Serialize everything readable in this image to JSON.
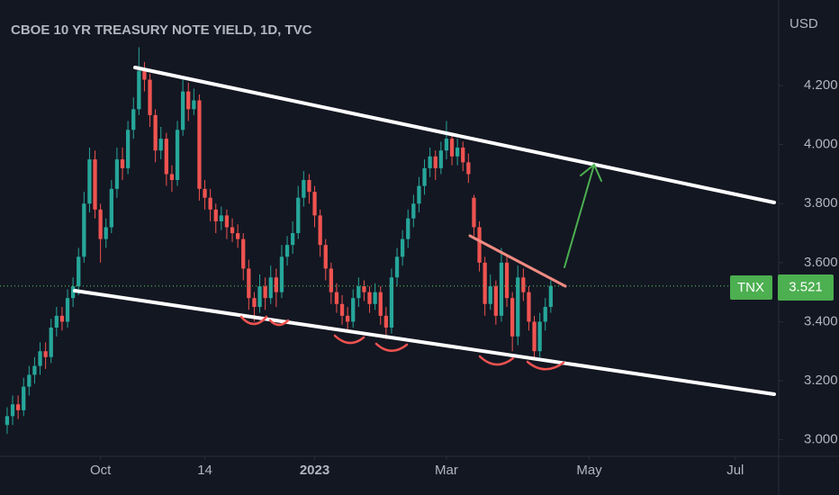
{
  "chart_data": {
    "type": "candlestick",
    "title": "CBOE 10 YR TREASURY NOTE YIELD, 1D, TVC",
    "currency": "USD",
    "symbol": "TNX",
    "last_price": 3.521,
    "up_color": "#26a69a",
    "down_color": "#ef5350",
    "grid": false,
    "ylim": [
      2.95,
      4.49
    ],
    "yticks": [
      {
        "value": 3.0,
        "label": "3.000"
      },
      {
        "value": 3.2,
        "label": "3.200"
      },
      {
        "value": 3.4,
        "label": "3.400"
      },
      {
        "value": 3.6,
        "label": "3.600"
      },
      {
        "value": 3.8,
        "label": "3.800"
      },
      {
        "value": 4.0,
        "label": "4.000"
      },
      {
        "value": 4.2,
        "label": "4.200"
      }
    ],
    "xlim": [
      -1.3,
      140.5
    ],
    "xticks": [
      {
        "value": 17,
        "label": "Oct"
      },
      {
        "value": 36,
        "label": "14"
      },
      {
        "value": 56,
        "label": "2023"
      },
      {
        "value": 80,
        "label": "Mar"
      },
      {
        "value": 106,
        "label": "May"
      },
      {
        "value": 132.6,
        "label": "Jul"
      }
    ],
    "ohlc": [
      [
        3.05,
        3.11,
        3.02,
        3.08
      ],
      [
        3.08,
        3.15,
        3.05,
        3.12
      ],
      [
        3.12,
        3.15,
        3.07,
        3.1
      ],
      [
        3.1,
        3.21,
        3.08,
        3.18
      ],
      [
        3.18,
        3.25,
        3.15,
        3.22
      ],
      [
        3.22,
        3.28,
        3.19,
        3.25
      ],
      [
        3.25,
        3.33,
        3.22,
        3.3
      ],
      [
        3.3,
        3.33,
        3.24,
        3.28
      ],
      [
        3.28,
        3.41,
        3.26,
        3.38
      ],
      [
        3.38,
        3.45,
        3.35,
        3.42
      ],
      [
        3.42,
        3.45,
        3.37,
        3.4
      ],
      [
        3.4,
        3.51,
        3.38,
        3.48
      ],
      [
        3.48,
        3.55,
        3.45,
        3.52
      ],
      [
        3.52,
        3.65,
        3.49,
        3.62
      ],
      [
        3.62,
        3.84,
        3.6,
        3.8
      ],
      [
        3.8,
        3.99,
        3.77,
        3.95
      ],
      [
        3.95,
        3.98,
        3.75,
        3.78
      ],
      [
        3.78,
        3.8,
        3.6,
        3.68
      ],
      [
        3.68,
        3.75,
        3.65,
        3.72
      ],
      [
        3.72,
        3.88,
        3.7,
        3.85
      ],
      [
        3.85,
        3.99,
        3.82,
        3.95
      ],
      [
        3.95,
        3.99,
        3.88,
        3.92
      ],
      [
        3.92,
        4.08,
        3.9,
        4.05
      ],
      [
        4.05,
        4.16,
        4.02,
        4.12
      ],
      [
        4.12,
        4.33,
        4.1,
        4.25
      ],
      [
        4.25,
        4.28,
        4.18,
        4.22
      ],
      [
        4.22,
        4.24,
        4.06,
        4.1
      ],
      [
        4.1,
        4.12,
        3.94,
        3.98
      ],
      [
        3.98,
        4.06,
        3.95,
        4.02
      ],
      [
        4.02,
        4.04,
        3.86,
        3.9
      ],
      [
        3.9,
        3.93,
        3.84,
        3.88
      ],
      [
        3.88,
        4.08,
        3.86,
        4.05
      ],
      [
        4.05,
        4.22,
        4.03,
        4.18
      ],
      [
        4.18,
        4.21,
        4.08,
        4.12
      ],
      [
        4.12,
        4.19,
        4.1,
        4.15
      ],
      [
        4.15,
        4.17,
        3.81,
        3.85
      ],
      [
        3.85,
        3.88,
        3.78,
        3.82
      ],
      [
        3.82,
        3.85,
        3.74,
        3.78
      ],
      [
        3.78,
        3.8,
        3.7,
        3.74
      ],
      [
        3.74,
        3.79,
        3.71,
        3.76
      ],
      [
        3.76,
        3.78,
        3.68,
        3.72
      ],
      [
        3.72,
        3.75,
        3.67,
        3.7
      ],
      [
        3.7,
        3.73,
        3.65,
        3.68
      ],
      [
        3.68,
        3.7,
        3.54,
        3.58
      ],
      [
        3.58,
        3.61,
        3.44,
        3.48
      ],
      [
        3.48,
        3.5,
        3.4,
        3.45
      ],
      [
        3.45,
        3.56,
        3.43,
        3.52
      ],
      [
        3.52,
        3.55,
        3.44,
        3.48
      ],
      [
        3.48,
        3.59,
        3.46,
        3.55
      ],
      [
        3.55,
        3.58,
        3.45,
        3.5
      ],
      [
        3.5,
        3.66,
        3.48,
        3.62
      ],
      [
        3.62,
        3.69,
        3.59,
        3.66
      ],
      [
        3.66,
        3.74,
        3.63,
        3.7
      ],
      [
        3.7,
        3.86,
        3.68,
        3.82
      ],
      [
        3.82,
        3.91,
        3.79,
        3.88
      ],
      [
        3.88,
        3.9,
        3.8,
        3.84
      ],
      [
        3.84,
        3.86,
        3.72,
        3.76
      ],
      [
        3.76,
        3.78,
        3.62,
        3.66
      ],
      [
        3.66,
        3.68,
        3.54,
        3.58
      ],
      [
        3.58,
        3.6,
        3.46,
        3.5
      ],
      [
        3.5,
        3.53,
        3.43,
        3.46
      ],
      [
        3.46,
        3.49,
        3.39,
        3.42
      ],
      [
        3.42,
        3.45,
        3.37,
        3.4
      ],
      [
        3.4,
        3.51,
        3.38,
        3.48
      ],
      [
        3.48,
        3.55,
        3.45,
        3.52
      ],
      [
        3.52,
        3.54,
        3.47,
        3.5
      ],
      [
        3.5,
        3.52,
        3.43,
        3.46
      ],
      [
        3.46,
        3.53,
        3.44,
        3.5
      ],
      [
        3.5,
        3.52,
        3.39,
        3.42
      ],
      [
        3.42,
        3.45,
        3.34,
        3.38
      ],
      [
        3.38,
        3.58,
        3.36,
        3.55
      ],
      [
        3.55,
        3.65,
        3.52,
        3.62
      ],
      [
        3.62,
        3.71,
        3.59,
        3.68
      ],
      [
        3.68,
        3.78,
        3.65,
        3.75
      ],
      [
        3.75,
        3.83,
        3.72,
        3.8
      ],
      [
        3.8,
        3.89,
        3.77,
        3.86
      ],
      [
        3.86,
        3.95,
        3.83,
        3.92
      ],
      [
        3.92,
        3.99,
        3.89,
        3.96
      ],
      [
        3.96,
        3.98,
        3.88,
        3.92
      ],
      [
        3.92,
        4.01,
        3.9,
        3.98
      ],
      [
        3.98,
        4.08,
        3.95,
        4.02
      ],
      [
        4.02,
        4.04,
        3.93,
        3.96
      ],
      [
        3.96,
        4.02,
        3.93,
        3.99
      ],
      [
        3.99,
        4.01,
        3.91,
        3.94
      ],
      [
        3.94,
        3.97,
        3.87,
        3.9
      ],
      [
        3.82,
        3.83,
        3.69,
        3.72
      ],
      [
        3.72,
        3.74,
        3.57,
        3.6
      ],
      [
        3.6,
        3.62,
        3.42,
        3.46
      ],
      [
        3.46,
        3.56,
        3.44,
        3.52
      ],
      [
        3.52,
        3.54,
        3.39,
        3.42
      ],
      [
        3.42,
        3.65,
        3.4,
        3.6
      ],
      [
        3.6,
        3.62,
        3.45,
        3.48
      ],
      [
        3.48,
        3.5,
        3.3,
        3.35
      ],
      [
        3.35,
        3.59,
        3.32,
        3.55
      ],
      [
        3.55,
        3.58,
        3.47,
        3.5
      ],
      [
        3.5,
        3.52,
        3.37,
        3.4
      ],
      [
        3.4,
        3.42,
        3.27,
        3.3
      ],
      [
        3.3,
        3.43,
        3.28,
        3.4
      ],
      [
        3.4,
        3.48,
        3.37,
        3.45
      ],
      [
        3.45,
        3.54,
        3.43,
        3.521
      ]
    ]
  }
}
